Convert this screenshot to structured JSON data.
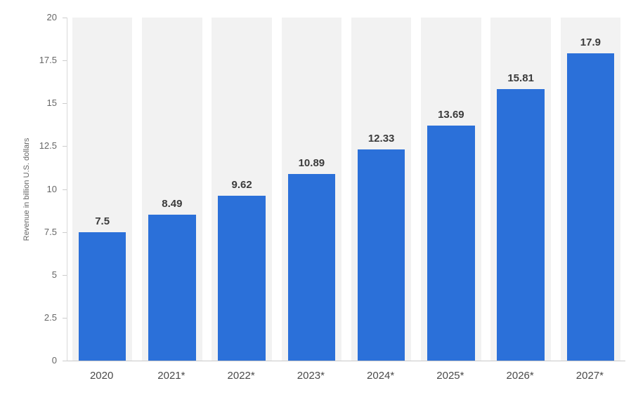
{
  "chart_data": {
    "type": "bar",
    "title": "",
    "xlabel": "",
    "ylabel": "Revenue in billion U.S. dollars",
    "categories": [
      "2020",
      "2021*",
      "2022*",
      "2023*",
      "2024*",
      "2025*",
      "2026*",
      "2027*"
    ],
    "values": [
      7.5,
      8.49,
      9.62,
      10.89,
      12.33,
      13.69,
      15.81,
      17.9
    ],
    "value_labels": [
      "7.5",
      "8.49",
      "9.62",
      "10.89",
      "12.33",
      "13.69",
      "15.81",
      "17.9"
    ],
    "ylim": [
      0,
      20
    ],
    "yticks": [
      0,
      2.5,
      5,
      7.5,
      10,
      12.5,
      15,
      17.5,
      20
    ],
    "ytick_labels": [
      "0",
      "2.5",
      "5",
      "7.5",
      "10",
      "12.5",
      "15",
      "17.5",
      "20"
    ],
    "grid": "off",
    "legend": "none",
    "colors": {
      "bar": "#2b70d9",
      "column_band": "#f2f2f2",
      "axis_line": "#c9c9c9",
      "tick_text": "#666666",
      "value_text": "#3b3b3b",
      "x_label_text": "#4a4a4a",
      "background": "#ffffff"
    }
  }
}
